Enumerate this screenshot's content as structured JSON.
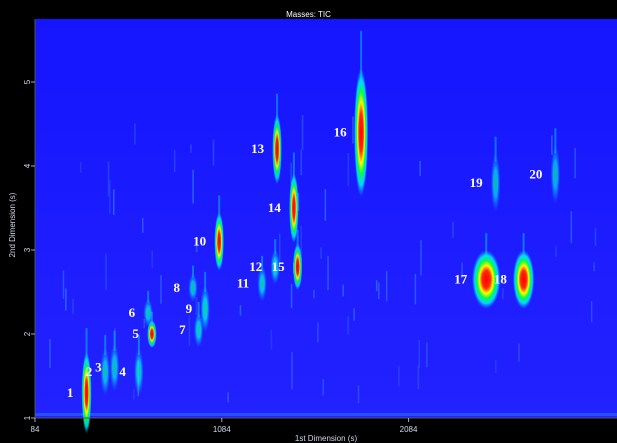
{
  "window_title": "Masses:  TIC",
  "chart_data": {
    "type": "heatmap",
    "title": "Masses:  TIC",
    "xlabel": "1st Dimension (s)",
    "ylabel": "2nd Dimension (s)",
    "xlim": [
      84,
      3200
    ],
    "ylim": [
      1,
      5.75
    ],
    "x_ticks": [
      84,
      1084,
      2084
    ],
    "y_ticks": [
      1,
      2,
      3,
      4,
      5
    ],
    "colorscale": [
      "#0000ff",
      "#00ffff",
      "#00ff00",
      "#ffff00",
      "#ff0000"
    ],
    "background_color": "#1a1aff",
    "grid": false,
    "peaks": [
      {
        "label": "1",
        "x": 360,
        "y": 1.3,
        "spread_x": 14,
        "spread_y": 0.35,
        "intensity": 0.95
      },
      {
        "label": "2",
        "x": 460,
        "y": 1.55,
        "spread_x": 6,
        "spread_y": 0.2,
        "intensity": 0.45
      },
      {
        "label": "3",
        "x": 510,
        "y": 1.6,
        "spread_x": 6,
        "spread_y": 0.2,
        "intensity": 0.45
      },
      {
        "label": "4",
        "x": 640,
        "y": 1.55,
        "spread_x": 6,
        "spread_y": 0.2,
        "intensity": 0.5
      },
      {
        "label": "5",
        "x": 710,
        "y": 2.0,
        "spread_x": 6,
        "spread_y": 0.12,
        "intensity": 0.75
      },
      {
        "label": "6",
        "x": 690,
        "y": 2.25,
        "spread_x": 5,
        "spread_y": 0.12,
        "intensity": 0.5
      },
      {
        "label": "7",
        "x": 960,
        "y": 2.05,
        "spread_x": 6,
        "spread_y": 0.15,
        "intensity": 0.6
      },
      {
        "label": "8",
        "x": 930,
        "y": 2.55,
        "spread_x": 5,
        "spread_y": 0.12,
        "intensity": 0.45
      },
      {
        "label": "9",
        "x": 995,
        "y": 2.3,
        "spread_x": 6,
        "spread_y": 0.2,
        "intensity": 0.65
      },
      {
        "label": "10",
        "x": 1070,
        "y": 3.1,
        "spread_x": 8,
        "spread_y": 0.25,
        "intensity": 0.95
      },
      {
        "label": "11",
        "x": 1300,
        "y": 2.6,
        "spread_x": 6,
        "spread_y": 0.15,
        "intensity": 0.55
      },
      {
        "label": "12",
        "x": 1370,
        "y": 2.8,
        "spread_x": 6,
        "spread_y": 0.15,
        "intensity": 0.65
      },
      {
        "label": "13",
        "x": 1380,
        "y": 4.2,
        "spread_x": 8,
        "spread_y": 0.3,
        "intensity": 0.85
      },
      {
        "label": "14",
        "x": 1470,
        "y": 3.5,
        "spread_x": 8,
        "spread_y": 0.3,
        "intensity": 0.9
      },
      {
        "label": "15",
        "x": 1490,
        "y": 2.8,
        "spread_x": 8,
        "spread_y": 0.2,
        "intensity": 0.8
      },
      {
        "label": "16",
        "x": 1830,
        "y": 4.4,
        "spread_x": 20,
        "spread_y": 0.55,
        "intensity": 1.0
      },
      {
        "label": "17",
        "x": 2500,
        "y": 2.65,
        "spread_x": 40,
        "spread_y": 0.25,
        "intensity": 1.0
      },
      {
        "label": "18",
        "x": 2700,
        "y": 2.65,
        "spread_x": 30,
        "spread_y": 0.25,
        "intensity": 1.0
      },
      {
        "label": "19",
        "x": 2550,
        "y": 3.8,
        "spread_x": 10,
        "spread_y": 0.25,
        "intensity": 0.4
      },
      {
        "label": "20",
        "x": 2870,
        "y": 3.9,
        "spread_x": 10,
        "spread_y": 0.25,
        "intensity": 0.35
      }
    ]
  }
}
